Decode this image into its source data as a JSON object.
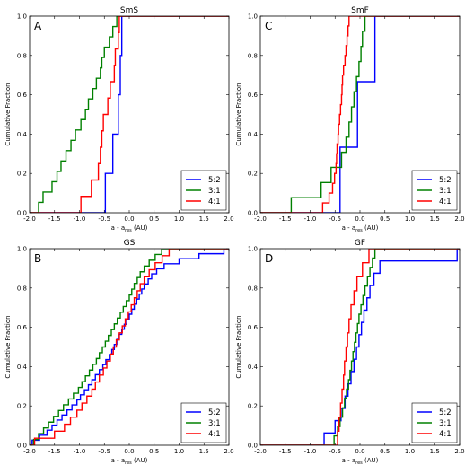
{
  "colors": {
    "5:2": "#0000ff",
    "3:1": "#008000",
    "4:1": "#ff0000"
  },
  "chart_data": [
    {
      "type": "line",
      "title": "SmS",
      "letter": "A",
      "xlabel": "a - a_res (AU)",
      "ylabel": "Cumulative Fraction",
      "xlim": [
        -2.0,
        2.0
      ],
      "ylim": [
        0.0,
        1.0
      ],
      "xticks": [
        "-2.0",
        "-1.5",
        "-1.0",
        "-0.5",
        "0.0",
        "0.5",
        "1.0",
        "1.5",
        "2.0"
      ],
      "yticks": [
        "0.0",
        "0.2",
        "0.4",
        "0.6",
        "0.8",
        "1.0"
      ],
      "legend": "lower-right",
      "series": [
        {
          "name": "5:2",
          "x": [
            -0.48,
            -0.33,
            -0.22,
            -0.18,
            -0.15
          ]
        },
        {
          "name": "3:1",
          "x": [
            -1.82,
            -1.73,
            -1.55,
            -1.45,
            -1.37,
            -1.27,
            -1.17,
            -1.08,
            -0.97,
            -0.88,
            -0.82,
            -0.73,
            -0.66,
            -0.58,
            -0.55,
            -0.5,
            -0.4,
            -0.33,
            -0.25
          ]
        },
        {
          "name": "4:1",
          "x": [
            -0.97,
            -0.76,
            -0.62,
            -0.58,
            -0.55,
            -0.52,
            -0.43,
            -0.38,
            -0.3,
            -0.28,
            -0.22,
            -0.2
          ]
        }
      ]
    },
    {
      "type": "line",
      "title": "SmF",
      "letter": "C",
      "xlabel": "a - a_res (AU)",
      "ylabel": "Cumulative Fraction",
      "xlim": [
        -2.0,
        2.0
      ],
      "ylim": [
        0.0,
        1.0
      ],
      "xticks": [
        "-2.0",
        "-1.5",
        "-1.0",
        "-0.5",
        "0.0",
        "0.5",
        "1.0",
        "1.5",
        "2.0"
      ],
      "yticks": [
        "0.0",
        "0.2",
        "0.4",
        "0.6",
        "0.8",
        "1.0"
      ],
      "legend": "lower-right",
      "series": [
        {
          "name": "5:2",
          "x": [
            -0.4,
            -0.05,
            0.3
          ]
        },
        {
          "name": "3:1",
          "x": [
            -1.38,
            -0.78,
            -0.58,
            -0.37,
            -0.28,
            -0.22,
            -0.17,
            -0.12,
            -0.07,
            -0.02,
            0.02,
            0.05,
            0.1
          ]
        },
        {
          "name": "4:1",
          "x": [
            -0.75,
            -0.62,
            -0.55,
            -0.51,
            -0.48,
            -0.47,
            -0.46,
            -0.44,
            -0.43,
            -0.41,
            -0.39,
            -0.37,
            -0.36,
            -0.35,
            -0.33,
            -0.3,
            -0.28,
            -0.26,
            -0.24,
            -0.22
          ]
        }
      ]
    },
    {
      "type": "line",
      "title": "GS",
      "letter": "B",
      "xlabel": "a - a_res (AU)",
      "ylabel": "Cumulative Fraction",
      "xlim": [
        -2.0,
        2.0
      ],
      "ylim": [
        0.0,
        1.0
      ],
      "xticks": [
        "-2.0",
        "-1.5",
        "-1.0",
        "-0.5",
        "0.0",
        "0.5",
        "1.0",
        "1.5",
        "2.0"
      ],
      "yticks": [
        "0.0",
        "0.2",
        "0.4",
        "0.6",
        "0.8",
        "1.0"
      ],
      "legend": "lower-right",
      "series": [
        {
          "name": "5:2",
          "x": [
            -1.95,
            -1.8,
            -1.65,
            -1.55,
            -1.45,
            -1.35,
            -1.25,
            -1.15,
            -1.05,
            -0.98,
            -0.9,
            -0.82,
            -0.75,
            -0.68,
            -0.6,
            -0.53,
            -0.47,
            -0.4,
            -0.35,
            -0.3,
            -0.25,
            -0.2,
            -0.15,
            -0.1,
            -0.05,
            0.0,
            0.05,
            0.1,
            0.15,
            0.2,
            0.25,
            0.3,
            0.38,
            0.45,
            0.55,
            0.7,
            1.0,
            1.4,
            1.9
          ]
        },
        {
          "name": "3:1",
          "x": [
            -1.92,
            -1.82,
            -1.72,
            -1.62,
            -1.52,
            -1.42,
            -1.32,
            -1.22,
            -1.12,
            -1.02,
            -0.95,
            -0.88,
            -0.8,
            -0.73,
            -0.66,
            -0.6,
            -0.54,
            -0.48,
            -0.42,
            -0.36,
            -0.3,
            -0.24,
            -0.18,
            -0.12,
            -0.06,
            0.0,
            0.05,
            0.1,
            0.16,
            0.22,
            0.3,
            0.4,
            0.52,
            0.65
          ]
        },
        {
          "name": "4:1",
          "x": [
            -1.9,
            -1.5,
            -1.3,
            -1.18,
            -1.05,
            -0.95,
            -0.85,
            -0.75,
            -0.68,
            -0.6,
            -0.52,
            -0.45,
            -0.38,
            -0.32,
            -0.26,
            -0.2,
            -0.14,
            -0.08,
            -0.02,
            0.04,
            0.1,
            0.16,
            0.22,
            0.3,
            0.4,
            0.52,
            0.66,
            0.8
          ]
        }
      ]
    },
    {
      "type": "line",
      "title": "GF",
      "letter": "D",
      "xlabel": "a - a_res (AU)",
      "ylabel": "Cumulative Fraction",
      "xlim": [
        -2.0,
        2.0
      ],
      "ylim": [
        0.0,
        1.0
      ],
      "xticks": [
        "-2.0",
        "-1.5",
        "-1.0",
        "-0.5",
        "0.0",
        "0.5",
        "1.0",
        "1.5",
        "2.0"
      ],
      "yticks": [
        "0.0",
        "0.2",
        "0.4",
        "0.6",
        "0.8",
        "1.0"
      ],
      "legend": "lower-right",
      "series": [
        {
          "name": "5:2",
          "x": [
            -0.72,
            -0.5,
            -0.38,
            -0.3,
            -0.24,
            -0.18,
            -0.12,
            -0.07,
            -0.02,
            0.03,
            0.08,
            0.14,
            0.2,
            0.28,
            0.4,
            1.95
          ]
        },
        {
          "name": "3:1",
          "x": [
            -0.52,
            -0.45,
            -0.4,
            -0.35,
            -0.31,
            -0.27,
            -0.23,
            -0.2,
            -0.17,
            -0.14,
            -0.11,
            -0.08,
            -0.05,
            -0.02,
            0.02,
            0.06,
            0.1,
            0.15,
            0.2,
            0.25,
            0.3
          ]
        },
        {
          "name": "4:1",
          "x": [
            -0.45,
            -0.42,
            -0.39,
            -0.36,
            -0.33,
            -0.31,
            -0.28,
            -0.25,
            -0.22,
            -0.18,
            -0.12,
            -0.06,
            0.05,
            0.18
          ]
        }
      ]
    }
  ]
}
